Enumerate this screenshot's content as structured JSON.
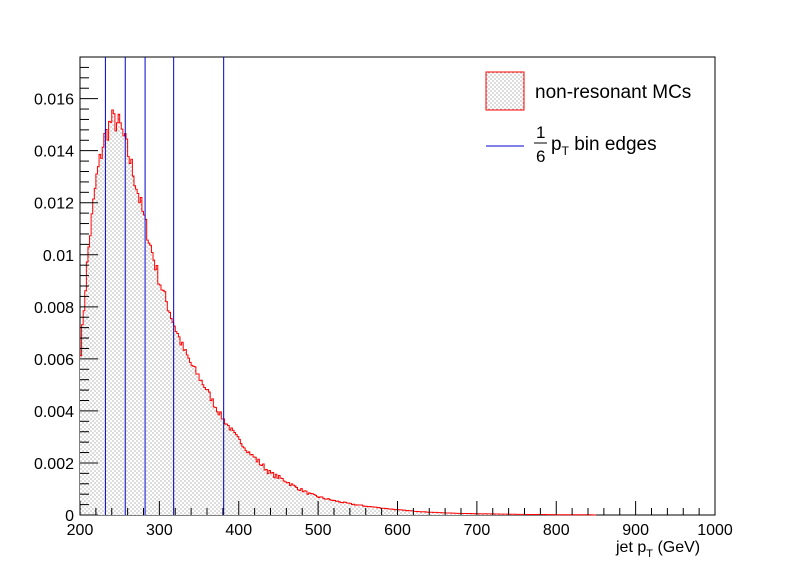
{
  "chart_data": {
    "type": "histogram",
    "xlabel_main": "jet p",
    "xlabel_sub": "T",
    "xlabel_unit": "(GeV)",
    "xlim": [
      200,
      1000
    ],
    "ylim": [
      0,
      0.0176
    ],
    "x_ticks": [
      200,
      300,
      400,
      500,
      600,
      700,
      800,
      900,
      1000
    ],
    "x_tick_labels": [
      "200",
      "300",
      "400",
      "500",
      "600",
      "700",
      "800",
      "900",
      "1000"
    ],
    "y_ticks": [
      0,
      0.002,
      0.004,
      0.006,
      0.008,
      0.01,
      0.012,
      0.014,
      0.016
    ],
    "y_tick_labels": [
      "0",
      "0.002",
      "0.004",
      "0.006",
      "0.008",
      "0.01",
      "0.012",
      "0.014",
      "0.016"
    ],
    "histogram_color": "#ff0000",
    "fill_pattern_color": "#555555",
    "bin_edge_color": "#0000cc",
    "series": [
      {
        "name": "non-resonant MCs",
        "x": [
          200,
          210,
          220,
          230,
          240,
          250,
          260,
          270,
          280,
          290,
          300,
          310,
          320,
          330,
          340,
          350,
          360,
          370,
          380,
          390,
          400,
          410,
          420,
          430,
          440,
          450,
          460,
          470,
          480,
          490,
          500,
          520,
          540,
          560,
          580,
          600,
          620,
          640,
          660,
          680,
          700,
          720,
          740,
          760,
          780,
          800,
          820,
          840,
          850
        ],
        "y": [
          0.0059,
          0.01,
          0.0128,
          0.0144,
          0.0152,
          0.015,
          0.014,
          0.0128,
          0.0115,
          0.0102,
          0.009,
          0.0081,
          0.0072,
          0.0064,
          0.0058,
          0.0053,
          0.0048,
          0.0042,
          0.0037,
          0.0033,
          0.0029,
          0.0025,
          0.0022,
          0.0019,
          0.0016,
          0.00145,
          0.0013,
          0.0011,
          0.00095,
          0.0008,
          0.0007,
          0.00055,
          0.00043,
          0.00034,
          0.00027,
          0.0002,
          0.00015,
          0.00011,
          8e-05,
          6e-05,
          5e-05,
          4e-05,
          3e-05,
          2e-05,
          2e-05,
          1e-05,
          1e-05,
          1e-05,
          0.0
        ]
      }
    ],
    "bin_edges": [
      232,
      257,
      282,
      318,
      381
    ],
    "legend": {
      "position": "top-right",
      "entries": [
        {
          "label": "non-resonant MCs",
          "kind": "fill"
        },
        {
          "label_fraction_num": "1",
          "label_fraction_den": "6",
          "label_var": "p",
          "label_sub": "T",
          "label_rest": "bin edges",
          "kind": "line"
        }
      ]
    }
  }
}
